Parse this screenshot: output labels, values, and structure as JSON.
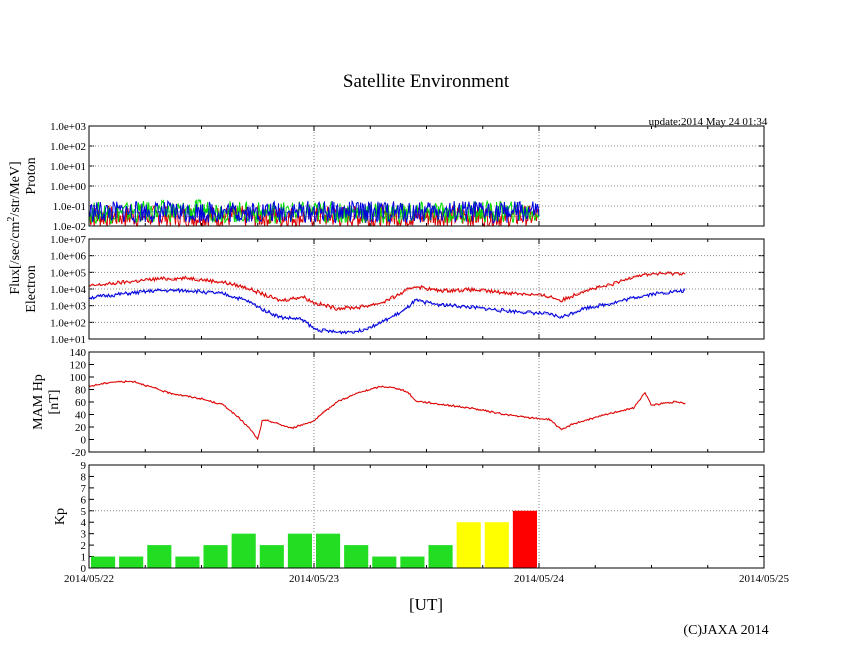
{
  "chart_data": {
    "type": "line",
    "title": "Satellite Environment",
    "update_text": "update:2014 May 24 01:34",
    "copyright": "(C)JAXA 2014",
    "xlabel": "[UT]",
    "x_ticks": [
      "2014/05/22",
      "2014/05/23",
      "2014/05/24",
      "2014/05/25"
    ],
    "shared_ylabel": "Flux[/sec/cm^2/str/MeV]",
    "panels": [
      {
        "id": "proton",
        "ylabel": "Proton",
        "scale": "log",
        "ylim": [
          0.01,
          1000
        ],
        "y_ticks": [
          "1.0e-02",
          "1.0e-01",
          "1.0e+00",
          "1.0e+01",
          "1.0e+02",
          "1.0e+03"
        ],
        "series": [
          {
            "color": "#dd0000",
            "values": [
              [
                0.0,
                0.03
              ],
              [
                0.25,
                0.03
              ],
              [
                0.5,
                0.03
              ],
              [
                0.75,
                0.028
              ],
              [
                1.0,
                0.03
              ],
              [
                1.25,
                0.03
              ],
              [
                1.5,
                0.03
              ],
              [
                1.75,
                0.03
              ],
              [
                2.0,
                0.03
              ]
            ]
          },
          {
            "color": "#00dd00",
            "values": [
              [
                0.0,
                0.045
              ],
              [
                0.25,
                0.05
              ],
              [
                0.5,
                0.06
              ],
              [
                0.75,
                0.045
              ],
              [
                1.0,
                0.05
              ],
              [
                1.25,
                0.045
              ],
              [
                1.5,
                0.045
              ],
              [
                1.75,
                0.05
              ],
              [
                2.0,
                0.05
              ]
            ]
          },
          {
            "color": "#0000dd",
            "values": [
              [
                0.0,
                0.05
              ],
              [
                0.25,
                0.05
              ],
              [
                0.5,
                0.05
              ],
              [
                0.75,
                0.05
              ],
              [
                1.0,
                0.05
              ],
              [
                1.25,
                0.05
              ],
              [
                1.5,
                0.05
              ],
              [
                1.75,
                0.05
              ],
              [
                2.0,
                0.05
              ]
            ]
          }
        ]
      },
      {
        "id": "electron",
        "ylabel": "Electron",
        "scale": "log",
        "ylim": [
          10,
          10000000
        ],
        "y_ticks": [
          "1.0e+01",
          "1.0e+02",
          "1.0e+03",
          "1.0e+04",
          "1.0e+05",
          "1.0e+06",
          "1.0e+07"
        ],
        "series": [
          {
            "color": "#dd0000",
            "values": [
              [
                0.0,
                15000
              ],
              [
                0.15,
                25000
              ],
              [
                0.3,
                40000
              ],
              [
                0.45,
                45000
              ],
              [
                0.6,
                25000
              ],
              [
                0.7,
                12000
              ],
              [
                0.8,
                3500
              ],
              [
                0.85,
                2000
              ],
              [
                0.95,
                3500
              ],
              [
                1.0,
                1500
              ],
              [
                1.1,
                700
              ],
              [
                1.2,
                800
              ],
              [
                1.3,
                1500
              ],
              [
                1.35,
                3000
              ],
              [
                1.45,
                15000
              ],
              [
                1.55,
                8000
              ],
              [
                1.7,
                9000
              ],
              [
                1.85,
                6000
              ],
              [
                1.95,
                5000
              ],
              [
                2.05,
                3500
              ],
              [
                2.1,
                2000
              ],
              [
                2.2,
                8000
              ],
              [
                2.3,
                15000
              ],
              [
                2.37,
                30000
              ],
              [
                2.42,
                60000
              ],
              [
                2.5,
                80000
              ],
              [
                2.65,
                90000
              ]
            ]
          },
          {
            "color": "#0000dd",
            "values": [
              [
                0.0,
                3000
              ],
              [
                0.15,
                5000
              ],
              [
                0.3,
                8000
              ],
              [
                0.45,
                8000
              ],
              [
                0.6,
                5000
              ],
              [
                0.7,
                2000
              ],
              [
                0.8,
                400
              ],
              [
                0.85,
                200
              ],
              [
                0.95,
                150
              ],
              [
                1.0,
                40
              ],
              [
                1.1,
                25
              ],
              [
                1.2,
                30
              ],
              [
                1.3,
                100
              ],
              [
                1.4,
                500
              ],
              [
                1.45,
                2000
              ],
              [
                1.55,
                1200
              ],
              [
                1.7,
                800
              ],
              [
                1.85,
                500
              ],
              [
                1.95,
                400
              ],
              [
                2.05,
                300
              ],
              [
                2.1,
                200
              ],
              [
                2.2,
                700
              ],
              [
                2.3,
                1200
              ],
              [
                2.37,
                2000
              ],
              [
                2.42,
                3000
              ],
              [
                2.5,
                5000
              ],
              [
                2.65,
                8000
              ]
            ]
          }
        ]
      },
      {
        "id": "hp",
        "ylabel": "MAM Hp [nT]",
        "ylabel_lines": [
          "MAM Hp",
          "[nT]"
        ],
        "scale": "linear",
        "ylim": [
          -20,
          140
        ],
        "y_ticks": [
          "-20",
          "0",
          "20",
          "40",
          "60",
          "80",
          "100",
          "120",
          "140"
        ],
        "series": [
          {
            "color": "#dd0000",
            "values": [
              [
                0.0,
                85
              ],
              [
                0.1,
                92
              ],
              [
                0.2,
                93
              ],
              [
                0.35,
                75
              ],
              [
                0.5,
                65
              ],
              [
                0.6,
                55
              ],
              [
                0.68,
                30
              ],
              [
                0.72,
                15
              ],
              [
                0.75,
                0
              ],
              [
                0.77,
                30
              ],
              [
                0.8,
                30
              ],
              [
                0.9,
                18
              ],
              [
                1.0,
                30
              ],
              [
                1.1,
                60
              ],
              [
                1.2,
                75
              ],
              [
                1.3,
                85
              ],
              [
                1.37,
                82
              ],
              [
                1.42,
                75
              ],
              [
                1.45,
                62
              ],
              [
                1.55,
                57
              ],
              [
                1.7,
                50
              ],
              [
                1.85,
                40
              ],
              [
                1.95,
                35
              ],
              [
                2.05,
                32
              ],
              [
                2.1,
                15
              ],
              [
                2.15,
                25
              ],
              [
                2.25,
                35
              ],
              [
                2.35,
                45
              ],
              [
                2.42,
                50
              ],
              [
                2.47,
                75
              ],
              [
                2.5,
                55
              ],
              [
                2.6,
                60
              ],
              [
                2.65,
                58
              ]
            ]
          }
        ]
      },
      {
        "id": "kp",
        "ylabel": "Kp",
        "scale": "linear",
        "type": "bar",
        "ylim": [
          0,
          9
        ],
        "y_ticks": [
          "0",
          "1",
          "2",
          "3",
          "4",
          "5",
          "6",
          "7",
          "8",
          "9"
        ],
        "bar_width_days": 0.125,
        "values": [
          1,
          1,
          2,
          1,
          2,
          3,
          2,
          3,
          3,
          2,
          1,
          1,
          2,
          4,
          4,
          5
        ],
        "colors": [
          "#22dd22",
          "#22dd22",
          "#22dd22",
          "#22dd22",
          "#22dd22",
          "#22dd22",
          "#22dd22",
          "#22dd22",
          "#22dd22",
          "#22dd22",
          "#22dd22",
          "#22dd22",
          "#22dd22",
          "#ffff00",
          "#ffff00",
          "#ff0000"
        ]
      }
    ]
  }
}
